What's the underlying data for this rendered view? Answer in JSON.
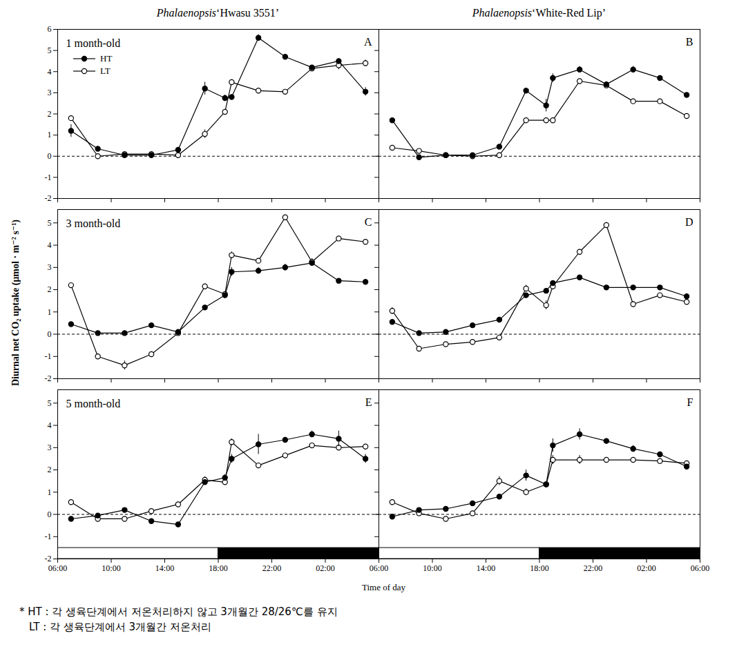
{
  "chart_data": [
    {
      "type": "line",
      "label": "A",
      "title": "Phalaenopsis ‘Hwasu 3551’",
      "subtitle": "1 month-old",
      "ylabel": "Diurnal net CO₂ uptake (μmol · m⁻² s⁻¹)",
      "legend": "upper left",
      "tick_labels": "y",
      "x": [
        7,
        9,
        11,
        13,
        15,
        17,
        18.5,
        19,
        21,
        23,
        25,
        27,
        29
      ],
      "xlim": [
        6,
        30
      ],
      "xticks": [
        {
          "value": 6,
          "label": "06:00"
        },
        {
          "value": 10,
          "label": "10:00"
        },
        {
          "value": 14,
          "label": "14:00"
        },
        {
          "value": 18,
          "label": "18:00"
        },
        {
          "value": 22,
          "label": "22:00"
        },
        {
          "value": 26,
          "label": "02:00"
        }
      ],
      "ylim": [
        -2,
        6
      ],
      "yticks": [
        -2,
        -1,
        0,
        1,
        2,
        3,
        4,
        5,
        6
      ],
      "reference_y": 0,
      "series": [
        {
          "name": "HT",
          "color": "#000000",
          "marker": "filled circle",
          "values": [
            1.2,
            0.35,
            0.05,
            0.05,
            0.3,
            3.2,
            2.75,
            2.8,
            5.6,
            4.7,
            4.2,
            4.5,
            3.05
          ],
          "errors": [
            0.3,
            0.05,
            0.05,
            0.05,
            0.05,
            0.3,
            0.15,
            0.1,
            0.15,
            0.05,
            0.05,
            0.05,
            0.2
          ]
        },
        {
          "name": "LT",
          "color": "#000000",
          "marker": "open circle",
          "values": [
            1.8,
            0.0,
            0.1,
            0.1,
            0.05,
            1.05,
            2.1,
            3.5,
            3.1,
            3.05,
            4.15,
            4.3,
            4.4
          ],
          "errors": [
            0.1,
            0.05,
            0.05,
            0.05,
            0.05,
            0.2,
            0.1,
            0.05,
            0.05,
            0.05,
            0.1,
            0.2,
            0.15
          ]
        }
      ]
    },
    {
      "type": "line",
      "label": "B",
      "title": "Phalaenopsis ‘White-Red Lip’",
      "tick_labels": false,
      "x": [
        7,
        9,
        11,
        13,
        15,
        17,
        18.5,
        19,
        21,
        23,
        25,
        27,
        29
      ],
      "xlim": [
        6,
        30
      ],
      "xticks": [
        {
          "value": 6,
          "label": "06:00"
        },
        {
          "value": 10,
          "label": "10:00"
        },
        {
          "value": 14,
          "label": "14:00"
        },
        {
          "value": 18,
          "label": "18:00"
        },
        {
          "value": 22,
          "label": "22:00"
        },
        {
          "value": 26,
          "label": "02:00"
        },
        {
          "value": 30,
          "label": "06:00"
        }
      ],
      "ylim": [
        -2,
        6
      ],
      "yticks": [
        -2,
        -1,
        0,
        1,
        2,
        3,
        4,
        5,
        6
      ],
      "reference_y": 0,
      "series": [
        {
          "name": "HT",
          "color": "#000000",
          "marker": "filled circle",
          "values": [
            1.7,
            -0.05,
            0.05,
            0.05,
            0.45,
            3.1,
            2.4,
            3.7,
            4.1,
            3.4,
            4.1,
            3.7,
            2.9
          ],
          "errors": [
            0.05,
            0.05,
            0.05,
            0.05,
            0.05,
            0.05,
            0.3,
            0.2,
            0.15,
            0.1,
            0.15,
            0.05,
            0.05
          ]
        },
        {
          "name": "LT",
          "color": "#000000",
          "marker": "open circle",
          "values": [
            0.4,
            0.25,
            0.05,
            0.0,
            0.05,
            1.7,
            1.7,
            1.7,
            3.55,
            3.35,
            2.6,
            2.6,
            1.9
          ],
          "errors": [
            0.05,
            0.05,
            0.05,
            0.05,
            0.05,
            0.05,
            0.05,
            0.05,
            0.05,
            0.1,
            0.05,
            0.1,
            0.05
          ]
        }
      ]
    },
    {
      "type": "line",
      "label": "C",
      "subtitle": "3 month-old",
      "tick_labels": "y",
      "x": [
        7,
        9,
        11,
        13,
        15,
        17,
        18.5,
        19,
        21,
        23,
        25,
        27,
        29
      ],
      "xlim": [
        6,
        30
      ],
      "xticks": [
        {
          "value": 6,
          "label": "06:00"
        },
        {
          "value": 10,
          "label": "10:00"
        },
        {
          "value": 14,
          "label": "14:00"
        },
        {
          "value": 18,
          "label": "18:00"
        },
        {
          "value": 22,
          "label": "22:00"
        },
        {
          "value": 26,
          "label": "02:00"
        }
      ],
      "ylim": [
        -2,
        5.6
      ],
      "yticks": [
        -2,
        -1,
        0,
        1,
        2,
        3,
        4,
        5
      ],
      "reference_y": 0,
      "series": [
        {
          "name": "HT",
          "color": "#000000",
          "marker": "filled circle",
          "values": [
            0.45,
            0.05,
            0.05,
            0.4,
            0.1,
            1.2,
            1.75,
            2.8,
            2.85,
            3.0,
            3.2,
            2.4,
            2.35
          ],
          "errors": [
            0.05,
            0.05,
            0.05,
            0.05,
            0.05,
            0.1,
            0.1,
            0.2,
            0.15,
            0.15,
            0.1,
            0.05,
            0.05
          ]
        },
        {
          "name": "LT",
          "color": "#000000",
          "marker": "open circle",
          "values": [
            2.2,
            -1.0,
            -1.4,
            -0.9,
            0.05,
            2.15,
            1.8,
            3.55,
            3.3,
            5.25,
            3.25,
            4.3,
            4.15
          ],
          "errors": [
            0.05,
            0.05,
            0.2,
            0.1,
            0.05,
            0.05,
            0.1,
            0.15,
            0.1,
            0.05,
            0.15,
            0.05,
            0.05
          ]
        }
      ]
    },
    {
      "type": "line",
      "label": "D",
      "tick_labels": false,
      "x": [
        7,
        9,
        11,
        13,
        15,
        17,
        18.5,
        19,
        21,
        23,
        25,
        27,
        29
      ],
      "xlim": [
        6,
        30
      ],
      "xticks": [
        {
          "value": 6,
          "label": "06:00"
        },
        {
          "value": 10,
          "label": "10:00"
        },
        {
          "value": 14,
          "label": "14:00"
        },
        {
          "value": 18,
          "label": "18:00"
        },
        {
          "value": 22,
          "label": "22:00"
        },
        {
          "value": 26,
          "label": "02:00"
        },
        {
          "value": 30,
          "label": "06:00"
        }
      ],
      "ylim": [
        -2,
        5.6
      ],
      "yticks": [
        -2,
        -1,
        0,
        1,
        2,
        3,
        4,
        5
      ],
      "reference_y": 0,
      "series": [
        {
          "name": "HT",
          "color": "#000000",
          "marker": "filled circle",
          "values": [
            0.55,
            0.05,
            0.1,
            0.4,
            0.65,
            1.75,
            1.95,
            2.3,
            2.55,
            2.1,
            2.1,
            2.1,
            1.7
          ],
          "errors": [
            0.05,
            0.05,
            0.05,
            0.05,
            0.05,
            0.1,
            0.1,
            0.1,
            0.05,
            0.05,
            0.05,
            0.05,
            0.05
          ]
        },
        {
          "name": "LT",
          "color": "#000000",
          "marker": "open circle",
          "values": [
            1.05,
            -0.65,
            -0.45,
            -0.35,
            -0.15,
            2.05,
            1.3,
            2.15,
            3.7,
            4.9,
            1.35,
            1.75,
            1.45
          ],
          "errors": [
            0.15,
            0.05,
            0.05,
            0.05,
            0.05,
            0.15,
            0.2,
            0.15,
            0.05,
            0.1,
            0.1,
            0.05,
            0.1
          ]
        }
      ]
    },
    {
      "type": "line",
      "label": "E",
      "subtitle": "5 month-old",
      "xlabel": "Time of day",
      "dark_period": [
        18,
        30
      ],
      "x": [
        7,
        9,
        11,
        13,
        15,
        17,
        18.5,
        19,
        21,
        23,
        25,
        27,
        29
      ],
      "xlim": [
        6,
        30
      ],
      "xticks": [
        {
          "value": 6,
          "label": "06:00"
        },
        {
          "value": 10,
          "label": "10:00"
        },
        {
          "value": 14,
          "label": "14:00"
        },
        {
          "value": 18,
          "label": "18:00"
        },
        {
          "value": 22,
          "label": "22:00"
        },
        {
          "value": 26,
          "label": "02:00"
        }
      ],
      "ylim": [
        -2,
        5.6
      ],
      "yticks": [
        -2,
        -1,
        0,
        1,
        2,
        3,
        4,
        5
      ],
      "reference_y": 0,
      "series": [
        {
          "name": "HT",
          "color": "#000000",
          "marker": "filled circle",
          "values": [
            -0.2,
            -0.05,
            0.2,
            -0.3,
            -0.45,
            1.45,
            1.65,
            2.5,
            3.15,
            3.35,
            3.6,
            3.4,
            2.5
          ],
          "errors": [
            0.05,
            0.05,
            0.05,
            0.05,
            0.05,
            0.1,
            0.15,
            0.2,
            0.45,
            0.05,
            0.15,
            0.35,
            0.2
          ]
        },
        {
          "name": "LT",
          "color": "#000000",
          "marker": "open circle",
          "values": [
            0.55,
            -0.2,
            -0.2,
            0.15,
            0.45,
            1.55,
            1.45,
            3.25,
            2.2,
            2.65,
            3.1,
            3.0,
            3.05
          ],
          "errors": [
            0.1,
            0.05,
            0.1,
            0.05,
            0.05,
            0.15,
            0.1,
            0.15,
            0.05,
            0.05,
            0.1,
            0.05,
            0.1
          ]
        }
      ]
    },
    {
      "type": "line",
      "label": "F",
      "tick_labels": "x",
      "dark_period": [
        18,
        30
      ],
      "x": [
        7,
        9,
        11,
        13,
        15,
        17,
        18.5,
        19,
        21,
        23,
        25,
        27,
        29
      ],
      "xlim": [
        6,
        30
      ],
      "xticks": [
        {
          "value": 6,
          "label": "06:00"
        },
        {
          "value": 10,
          "label": "10:00"
        },
        {
          "value": 14,
          "label": "14:00"
        },
        {
          "value": 18,
          "label": "18:00"
        },
        {
          "value": 22,
          "label": "22:00"
        },
        {
          "value": 26,
          "label": "02:00"
        },
        {
          "value": 30,
          "label": "06:00"
        }
      ],
      "ylim": [
        -2,
        5.6
      ],
      "yticks": [
        -2,
        -1,
        0,
        1,
        2,
        3,
        4,
        5
      ],
      "reference_y": 0,
      "series": [
        {
          "name": "HT",
          "color": "#000000",
          "marker": "filled circle",
          "values": [
            -0.1,
            0.2,
            0.25,
            0.5,
            0.8,
            1.75,
            1.35,
            3.1,
            3.6,
            3.3,
            2.95,
            2.7,
            2.15
          ],
          "errors": [
            0.05,
            0.05,
            0.05,
            0.05,
            0.05,
            0.25,
            0.05,
            0.3,
            0.25,
            0.05,
            0.15,
            0.1,
            0.1
          ]
        },
        {
          "name": "LT",
          "color": "#000000",
          "marker": "open circle",
          "values": [
            0.55,
            0.05,
            -0.2,
            0.05,
            1.5,
            1.0,
            1.35,
            2.45,
            2.45,
            2.45,
            2.45,
            2.4,
            2.3
          ],
          "errors": [
            0.05,
            0.05,
            0.05,
            0.05,
            0.2,
            0.15,
            0.05,
            0.2,
            0.2,
            0.05,
            0.05,
            0.05,
            0.05
          ]
        }
      ]
    }
  ],
  "footnote": [
    "* HT : 각 생육단계에서 저온처리하지 않고 3개월간 28/26℃를 유지",
    "LT : 각 생육단계에서 3개월간 저온처리"
  ]
}
